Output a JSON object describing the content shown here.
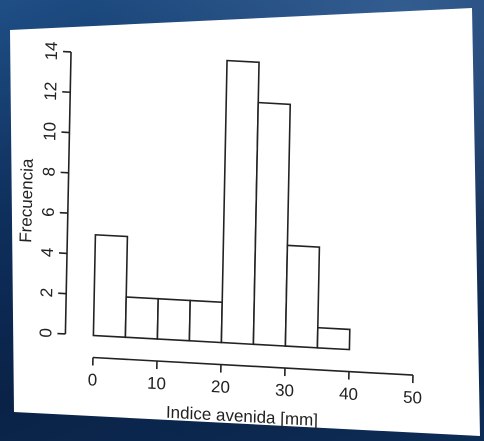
{
  "chart_data": {
    "type": "bar",
    "subtype": "histogram",
    "xlabel": "Indice avenida [mm]",
    "ylabel": "Frecuencia",
    "bins": [
      {
        "from": 0,
        "to": 5,
        "count": 5
      },
      {
        "from": 5,
        "to": 10,
        "count": 2
      },
      {
        "from": 10,
        "to": 15,
        "count": 2
      },
      {
        "from": 15,
        "to": 20,
        "count": 2
      },
      {
        "from": 20,
        "to": 25,
        "count": 14
      },
      {
        "from": 25,
        "to": 30,
        "count": 12
      },
      {
        "from": 30,
        "to": 35,
        "count": 5
      },
      {
        "from": 35,
        "to": 40,
        "count": 1
      }
    ],
    "xlim": [
      0,
      50
    ],
    "ylim": [
      0,
      14
    ],
    "x_ticks": [
      "0",
      "10",
      "20",
      "30",
      "40",
      "50"
    ],
    "y_ticks": [
      "0",
      "2",
      "4",
      "6",
      "8",
      "10",
      "12",
      "14"
    ],
    "grid": false,
    "bar_fill": "#ffffff",
    "bar_stroke": "#222222"
  }
}
